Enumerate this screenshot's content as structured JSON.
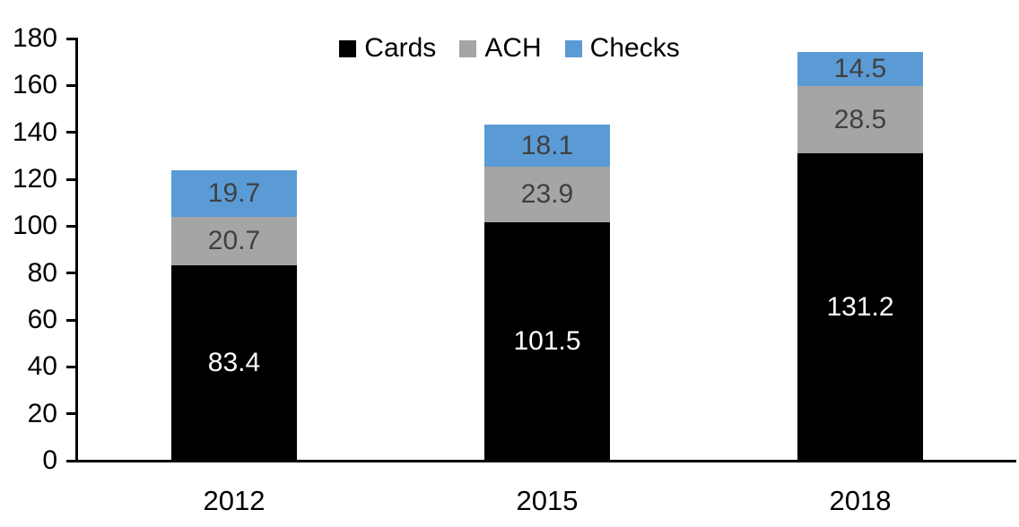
{
  "chart_data": {
    "type": "bar",
    "stacked": true,
    "title": "",
    "xlabel": "",
    "ylabel": "",
    "categories": [
      "2012",
      "2015",
      "2018"
    ],
    "series": [
      {
        "name": "Cards",
        "color": "#000000",
        "label_color": "#ffffff",
        "values": [
          83.4,
          101.5,
          131.2
        ]
      },
      {
        "name": "ACH",
        "color": "#a5a5a5",
        "label_color": "#404040",
        "values": [
          20.7,
          23.9,
          28.5
        ]
      },
      {
        "name": "Checks",
        "color": "#5b9bd5",
        "label_color": "#404040",
        "values": [
          19.7,
          18.1,
          14.5
        ]
      }
    ],
    "totals": [
      123.8,
      143.5,
      174.2
    ],
    "ylim": [
      0,
      180
    ],
    "yticks": [
      0,
      20,
      40,
      60,
      80,
      100,
      120,
      140,
      160,
      180
    ],
    "grid": false,
    "legend_position": "top-center",
    "axis_color": "#000000",
    "background_color": "#ffffff"
  }
}
